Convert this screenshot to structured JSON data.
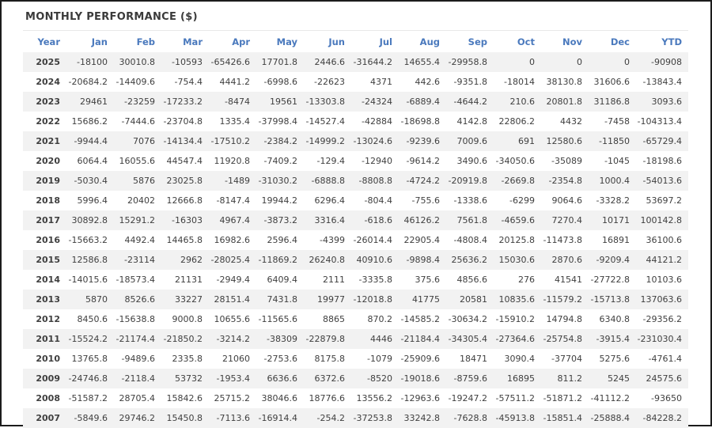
{
  "title": "MONTHLY PERFORMANCE ($)",
  "colors": {
    "frame_border": "#1c1c1c",
    "header_blue": "#4a79bd",
    "negative_red": "#ff6262",
    "positive_dark": "#3f3f3f",
    "stripe_gray": "#f2f2f2",
    "title_dark": "#3a3a3a"
  },
  "table": {
    "columns": [
      "Year",
      "Jan",
      "Feb",
      "Mar",
      "Apr",
      "May",
      "Jun",
      "Jul",
      "Aug",
      "Sep",
      "Oct",
      "Nov",
      "Dec",
      "YTD"
    ],
    "rows": [
      {
        "year": "2025",
        "values": [
          -18100,
          30010.8,
          -10593,
          -65426.6,
          17701.8,
          2446.6,
          -31644.2,
          14655.4,
          -29958.8,
          0,
          0,
          0,
          -90908
        ]
      },
      {
        "year": "2024",
        "values": [
          -20684.2,
          -14409.6,
          -754.4,
          4441.2,
          -6998.6,
          -22623,
          4371,
          442.6,
          -9351.8,
          -18014,
          38130.8,
          31606.6,
          -13843.4
        ]
      },
      {
        "year": "2023",
        "values": [
          29461,
          -23259,
          -17233.2,
          -8474,
          19561,
          -13303.8,
          -24324,
          -6889.4,
          -4644.2,
          210.6,
          20801.8,
          31186.8,
          3093.6
        ]
      },
      {
        "year": "2022",
        "values": [
          15686.2,
          -7444.6,
          -23704.8,
          1335.4,
          -37998.4,
          -14527.4,
          -42884,
          -18698.8,
          4142.8,
          22806.2,
          4432,
          -7458,
          -104313.4
        ]
      },
      {
        "year": "2021",
        "values": [
          -9944.4,
          7076,
          -14134.4,
          -17510.2,
          -2384.2,
          -14999.2,
          -13024.6,
          -9239.6,
          7009.6,
          691,
          12580.6,
          -11850,
          -65729.4
        ]
      },
      {
        "year": "2020",
        "values": [
          6064.4,
          16055.6,
          44547.4,
          11920.8,
          -7409.2,
          -129.4,
          -12940,
          -9614.2,
          3490.6,
          -34050.6,
          -35089,
          -1045,
          -18198.6
        ]
      },
      {
        "year": "2019",
        "values": [
          -5030.4,
          5876,
          23025.8,
          -1489,
          -31030.2,
          -6888.8,
          -8808.8,
          -4724.2,
          -20919.8,
          -2669.8,
          -2354.8,
          1000.4,
          -54013.6
        ]
      },
      {
        "year": "2018",
        "values": [
          5996.4,
          20402,
          12666.8,
          -8147.4,
          19944.2,
          6296.4,
          -804.4,
          -755.6,
          -1338.6,
          -6299,
          9064.6,
          -3328.2,
          53697.2
        ]
      },
      {
        "year": "2017",
        "values": [
          30892.8,
          15291.2,
          -16303,
          4967.4,
          -3873.2,
          3316.4,
          -618.6,
          46126.2,
          7561.8,
          -4659.6,
          7270.4,
          10171,
          100142.8
        ]
      },
      {
        "year": "2016",
        "values": [
          -15663.2,
          4492.4,
          14465.8,
          16982.6,
          2596.4,
          -4399,
          -26014.4,
          22905.4,
          -4808.4,
          20125.8,
          -11473.8,
          16891,
          36100.6
        ]
      },
      {
        "year": "2015",
        "values": [
          12586.8,
          -23114,
          2962,
          -28025.4,
          -11869.2,
          26240.8,
          40910.6,
          -9898.4,
          25636.2,
          15030.6,
          2870.6,
          -9209.4,
          44121.2
        ]
      },
      {
        "year": "2014",
        "values": [
          -14015.6,
          -18573.4,
          21131,
          -2949.4,
          6409.4,
          2111,
          -3335.8,
          375.6,
          4856.6,
          276,
          41541,
          -27722.8,
          10103.6
        ]
      },
      {
        "year": "2013",
        "values": [
          5870,
          8526.6,
          33227,
          28151.4,
          7431.8,
          19977,
          -12018.8,
          41775,
          20581,
          10835.6,
          -11579.2,
          -15713.8,
          137063.6
        ]
      },
      {
        "year": "2012",
        "values": [
          8450.6,
          -15638.8,
          9000.8,
          10655.6,
          -11565.6,
          8865,
          870.2,
          -14585.2,
          -30634.2,
          -15910.2,
          14794.8,
          6340.8,
          -29356.2
        ]
      },
      {
        "year": "2011",
        "values": [
          -15524.2,
          -21174.4,
          -21850.2,
          -3214.2,
          -38309,
          -22879.8,
          4446,
          -21184.4,
          -34305.4,
          -27364.6,
          -25754.8,
          -3915.4,
          -231030.4
        ]
      },
      {
        "year": "2010",
        "values": [
          13765.8,
          -9489.6,
          2335.8,
          21060,
          -2753.6,
          8175.8,
          -1079,
          -25909.6,
          18471,
          3090.4,
          -37704,
          5275.6,
          -4761.4
        ]
      },
      {
        "year": "2009",
        "values": [
          -24746.8,
          -2118.4,
          53732,
          -1953.4,
          6636.6,
          6372.6,
          -8520,
          -19018.6,
          -8759.6,
          16895,
          811.2,
          5245,
          24575.6
        ]
      },
      {
        "year": "2008",
        "values": [
          -51587.2,
          28705.4,
          15842.6,
          25715.2,
          38046.6,
          18776.6,
          13556.2,
          -12963.6,
          -19247.2,
          -57511.2,
          -51871.2,
          -41112.2,
          -93650
        ]
      },
      {
        "year": "2007",
        "values": [
          -5849.6,
          29746.2,
          15450.8,
          -7113.6,
          -16914.4,
          -254.2,
          -37253.8,
          33242.8,
          -7628.8,
          -45913.8,
          -15851.4,
          -25888.4,
          -84228.2
        ]
      }
    ]
  }
}
